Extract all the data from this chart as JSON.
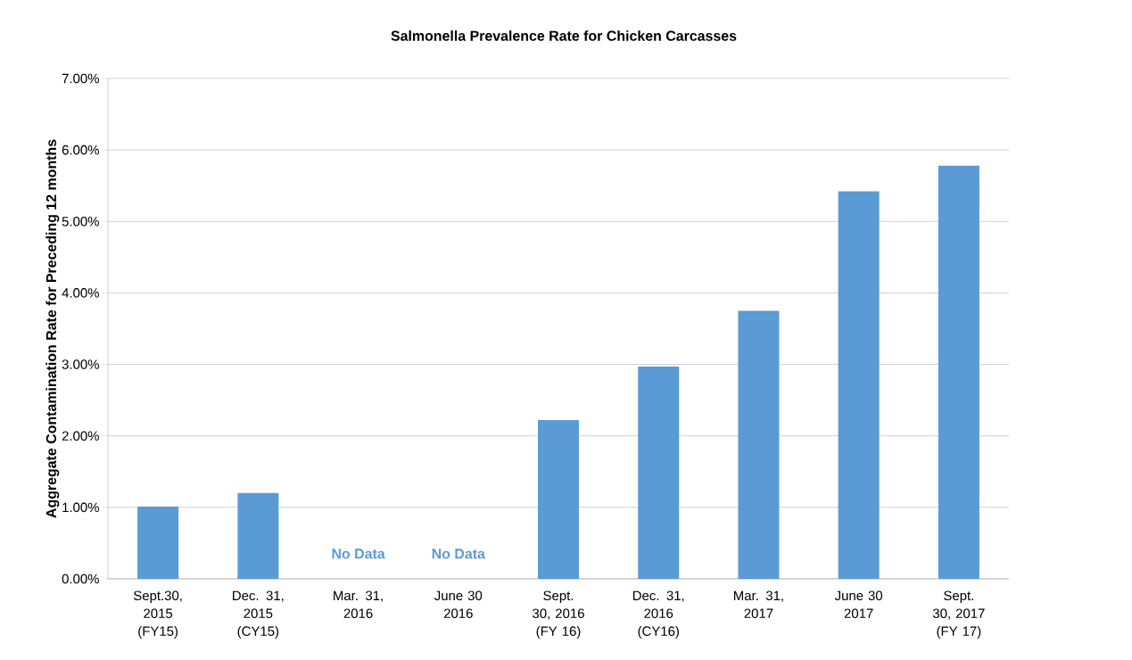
{
  "chart_data": {
    "type": "bar",
    "title": "Salmonella Prevalence Rate for Chicken Carcasses",
    "ylabel": "Aggregate Contamination Rate for Preceding 12 months",
    "categories": [
      "Sept.30, 2015 (FY15)",
      "Dec. 31, 2015 (CY15)",
      "Mar. 31, 2016",
      "June 30 2016",
      "Sept. 30, 2016 (FY 16)",
      "Dec. 31, 2016 (CY16)",
      "Mar. 31, 2017",
      "June 30 2017",
      "Sept. 30, 2017 (FY 17)"
    ],
    "values": [
      1.01,
      1.2,
      null,
      null,
      2.22,
      2.97,
      3.75,
      5.42,
      5.78
    ],
    "color": "#5b9bd5",
    "ylim": [
      0,
      7
    ],
    "yticks": [
      {
        "value": 0,
        "label": "0.00%"
      },
      {
        "value": 1,
        "label": "1.00%"
      },
      {
        "value": 2,
        "label": "2.00%"
      },
      {
        "value": 3,
        "label": "3.00%"
      },
      {
        "value": 4,
        "label": "4.00%"
      },
      {
        "value": 5,
        "label": "5.00%"
      },
      {
        "value": 6,
        "label": "6.00%"
      },
      {
        "value": 7,
        "label": "7.00%"
      }
    ],
    "grid": "y",
    "annotations": [
      "No Data",
      "No Data"
    ]
  }
}
